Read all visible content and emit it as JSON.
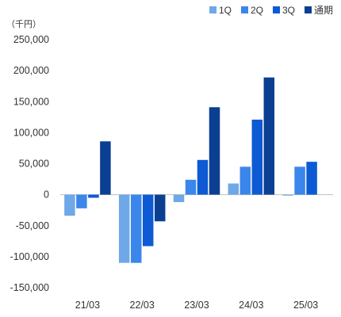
{
  "chart_data": {
    "type": "bar",
    "unit_label": "（千円）",
    "categories": [
      "21/03",
      "22/03",
      "23/03",
      "24/03",
      "25/03"
    ],
    "series": [
      {
        "name": "1Q",
        "color": "#6fa8e8",
        "values": [
          -34000,
          -110000,
          -12000,
          18000,
          -1500
        ]
      },
      {
        "name": "2Q",
        "color": "#3a86ea",
        "values": [
          -22000,
          -110000,
          24000,
          45000,
          45000
        ]
      },
      {
        "name": "3Q",
        "color": "#0e5ad4",
        "values": [
          -5000,
          -83000,
          56000,
          121000,
          53000
        ]
      },
      {
        "name": "通期",
        "color": "#0b3f92",
        "values": [
          86000,
          -43000,
          141000,
          189000,
          null
        ]
      }
    ],
    "y_ticks": [
      "250,000",
      "200,000",
      "150,000",
      "100,000",
      "50,000",
      "0",
      "-50,000",
      "-100,000",
      "-150,000"
    ],
    "ylim": [
      -150000,
      250000
    ],
    "legend_position": "top-right",
    "grid": false
  }
}
